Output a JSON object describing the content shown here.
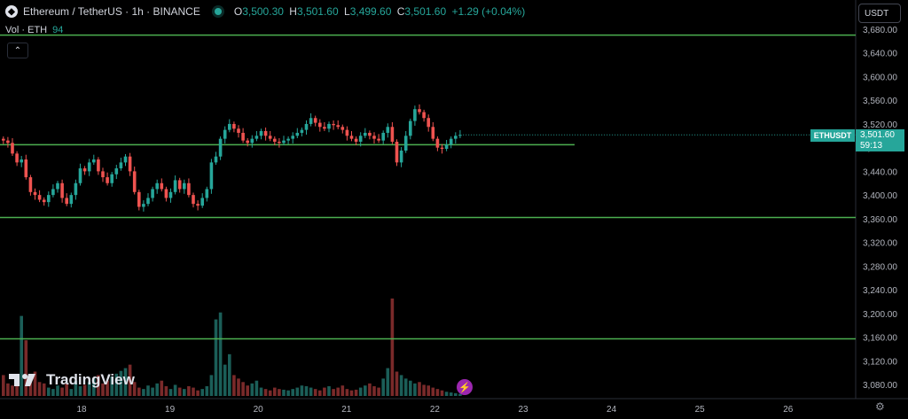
{
  "header": {
    "symbol_icon": "ethereum-icon",
    "title": "Ethereum / TetherUS · 1h · BINANCE",
    "ohlc": [
      {
        "k": "O",
        "v": "3,500.30"
      },
      {
        "k": "H",
        "v": "3,501.60"
      },
      {
        "k": "L",
        "v": "3,499.60"
      },
      {
        "k": "C",
        "v": "3,501.60"
      }
    ],
    "change": "+1.29 (+0.04%)"
  },
  "volume_legend": {
    "label": "Vol · ETH",
    "value": "94"
  },
  "currency_button": "USDT",
  "price_tag": {
    "symbol": "ETHUSDT",
    "price": "3,501.60",
    "countdown": "59:13"
  },
  "logo_text": "TradingView",
  "colors": {
    "up": "#26a69a",
    "down": "#ef5350",
    "level": "#4caf50",
    "up_vol": "#1b5e58",
    "down_vol": "#7a2a2a"
  },
  "chart_data": {
    "type": "candlestick",
    "y_axis_ticks": [
      "3,680.00",
      "3,640.00",
      "3,600.00",
      "3,560.00",
      "3,520.00",
      "3,480.00",
      "3,440.00",
      "3,400.00",
      "3,360.00",
      "3,320.00",
      "3,280.00",
      "3,240.00",
      "3,200.00",
      "3,160.00",
      "3,120.00",
      "3,080.00"
    ],
    "y_range": [
      3060,
      3700
    ],
    "x_axis_labels": [
      "18",
      "19",
      "20",
      "21",
      "22",
      "23",
      "24",
      "25",
      "26"
    ],
    "horizontal_levels": [
      3670,
      3485,
      3362,
      3157
    ],
    "level_segments": [
      {
        "price": 3670,
        "to": "end"
      },
      {
        "price": 3485,
        "to": "23.5"
      },
      {
        "price": 3362,
        "to": "end"
      },
      {
        "price": 3157,
        "to": "end"
      }
    ],
    "candles_close": [
      3492,
      3488,
      3470,
      3455,
      3460,
      3430,
      3405,
      3400,
      3392,
      3388,
      3400,
      3410,
      3420,
      3395,
      3385,
      3400,
      3420,
      3445,
      3440,
      3455,
      3460,
      3440,
      3430,
      3420,
      3435,
      3445,
      3455,
      3465,
      3440,
      3405,
      3380,
      3385,
      3395,
      3410,
      3420,
      3410,
      3395,
      3405,
      3425,
      3410,
      3420,
      3400,
      3385,
      3382,
      3395,
      3410,
      3455,
      3465,
      3495,
      3510,
      3520,
      3512,
      3505,
      3492,
      3488,
      3495,
      3500,
      3508,
      3500,
      3495,
      3490,
      3488,
      3492,
      3495,
      3500,
      3505,
      3510,
      3520,
      3530,
      3522,
      3515,
      3512,
      3520,
      3518,
      3515,
      3510,
      3500,
      3495,
      3490,
      3500,
      3505,
      3500,
      3495,
      3492,
      3505,
      3515,
      3490,
      3455,
      3475,
      3500,
      3525,
      3545,
      3540,
      3530,
      3515,
      3495,
      3480,
      3478,
      3485,
      3495,
      3500,
      3501.6
    ],
    "volumes": [
      30,
      18,
      15,
      22,
      40,
      80,
      25,
      35,
      20,
      18,
      12,
      10,
      15,
      12,
      18,
      10,
      22,
      14,
      16,
      20,
      25,
      30,
      18,
      22,
      28,
      32,
      36,
      40,
      45,
      20,
      12,
      10,
      15,
      12,
      18,
      22,
      14,
      10,
      16,
      12,
      10,
      14,
      12,
      8,
      10,
      14,
      30,
      40,
      55,
      45,
      60,
      30,
      25,
      20,
      15,
      18,
      22,
      12,
      10,
      8,
      12,
      10,
      9,
      8,
      10,
      12,
      15,
      14,
      12,
      10,
      8,
      12,
      14,
      10,
      12,
      15,
      10,
      8,
      9,
      12,
      15,
      18,
      14,
      12,
      25,
      40,
      90,
      35,
      30,
      25,
      22,
      18,
      20,
      16,
      15,
      12,
      10,
      8,
      6,
      5,
      4,
      3
    ],
    "volume_spikes": [
      {
        "index": 4,
        "v": 115
      },
      {
        "index": 47,
        "v": 110
      },
      {
        "index": 48,
        "v": 120
      },
      {
        "index": 86,
        "v": 140
      }
    ]
  }
}
